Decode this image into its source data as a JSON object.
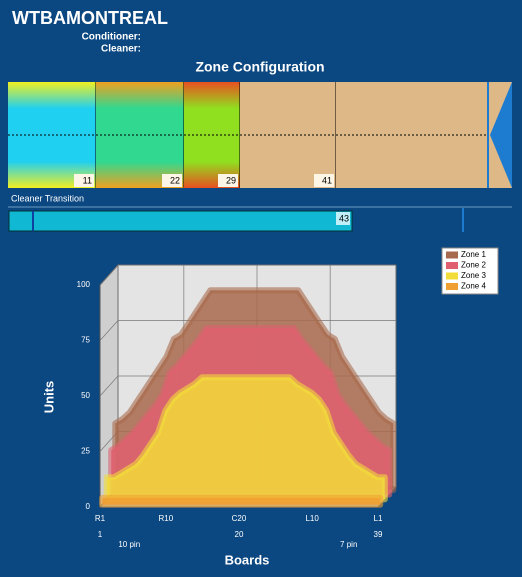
{
  "header": {
    "title": "WTBAMONTREAL",
    "conditioner": "Conditioner:",
    "cleaner": "Cleaner:"
  },
  "zone_config": {
    "title": "Zone Configuration",
    "markers": [
      11,
      22,
      29,
      41
    ]
  },
  "cleaner_transition": {
    "label": "Cleaner Transition",
    "value": 43
  },
  "chart_data": {
    "type": "area3d",
    "ylabel": "Units",
    "xlabel": "Boards",
    "x": [
      1,
      2,
      3,
      4,
      5,
      6,
      7,
      8,
      9,
      10,
      11,
      12,
      13,
      14,
      15,
      16,
      17,
      18,
      19,
      20,
      21,
      22,
      23,
      24,
      25,
      26,
      27,
      28,
      29,
      30,
      31,
      32,
      33,
      34,
      35,
      36,
      37,
      38,
      39
    ],
    "xlim": [
      1,
      39
    ],
    "xticks": [
      {
        "value": 1,
        "label": "R1"
      },
      {
        "value": 10,
        "label": "R10"
      },
      {
        "value": 20,
        "label": "C20"
      },
      {
        "value": 30,
        "label": "L10"
      },
      {
        "value": 39,
        "label": "L1"
      }
    ],
    "board_ticks": [
      1,
      20,
      39
    ],
    "pin_labels": [
      {
        "value": 5,
        "label": "10 pin"
      },
      {
        "value": 35,
        "label": "7 pin"
      }
    ],
    "ylim": [
      0,
      100
    ],
    "yticks": [
      0,
      25,
      50,
      75,
      100
    ],
    "grid": true,
    "legend": "top-right",
    "series": [
      {
        "name": "Zone 1",
        "color": "#a86a4c",
        "values": [
          30,
          32,
          35,
          40,
          45,
          50,
          55,
          60,
          68,
          70,
          75,
          80,
          85,
          90,
          90,
          90,
          90,
          90,
          90,
          90,
          90,
          90,
          90,
          90,
          90,
          90,
          85,
          80,
          75,
          70,
          68,
          60,
          55,
          50,
          45,
          40,
          35,
          32,
          30
        ]
      },
      {
        "name": "Zone 2",
        "color": "#e06070",
        "values": [
          20,
          22,
          25,
          28,
          32,
          36,
          40,
          45,
          55,
          58,
          62,
          66,
          70,
          75,
          75,
          75,
          75,
          75,
          75,
          75,
          75,
          75,
          75,
          75,
          75,
          75,
          70,
          66,
          62,
          58,
          55,
          45,
          40,
          36,
          32,
          28,
          25,
          22,
          20
        ]
      },
      {
        "name": "Zone 3",
        "color": "#f2dc3a",
        "values": [
          10,
          10,
          12,
          14,
          16,
          20,
          25,
          30,
          40,
          45,
          48,
          50,
          52,
          55,
          55,
          55,
          55,
          55,
          55,
          55,
          55,
          55,
          55,
          55,
          55,
          55,
          52,
          50,
          48,
          45,
          40,
          30,
          25,
          20,
          16,
          14,
          12,
          10,
          10
        ]
      },
      {
        "name": "Zone 4",
        "color": "#f0a030",
        "values": [
          3,
          3,
          3,
          3,
          3,
          3,
          3,
          3,
          3,
          3,
          3,
          3,
          3,
          3,
          3,
          3,
          3,
          3,
          3,
          3,
          3,
          3,
          3,
          3,
          3,
          3,
          3,
          3,
          3,
          3,
          3,
          3,
          3,
          3,
          3,
          3,
          3,
          3,
          3
        ]
      }
    ]
  }
}
